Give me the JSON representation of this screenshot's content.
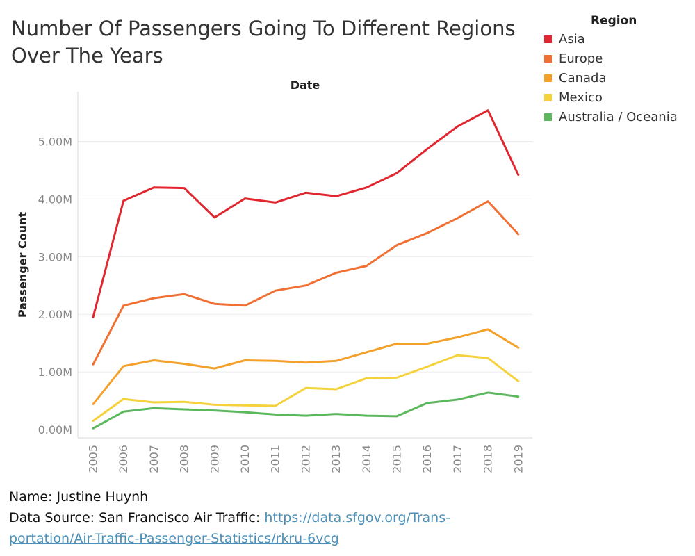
{
  "title": "Number Of Passengers Going To Different Regions Over The Years",
  "chart_data": {
    "type": "line",
    "xlabel": "Date",
    "ylabel": "Passenger Count",
    "x": [
      "2005",
      "2006",
      "2007",
      "2008",
      "2009",
      "2010",
      "2011",
      "2012",
      "2013",
      "2014",
      "2015",
      "2016",
      "2017",
      "2018",
      "2019"
    ],
    "yticks": [
      {
        "value": 0,
        "label": "0.00M"
      },
      {
        "value": 1000000,
        "label": "1.00M"
      },
      {
        "value": 2000000,
        "label": "2.00M"
      },
      {
        "value": 3000000,
        "label": "3.00M"
      },
      {
        "value": 4000000,
        "label": "4.00M"
      },
      {
        "value": 5000000,
        "label": "5.00M"
      }
    ],
    "ylim": [
      0,
      5800000
    ],
    "grid": true,
    "legend_title": "Region",
    "legend_position": "top-right",
    "series": [
      {
        "name": "Asia",
        "color": "#e0262f",
        "values": [
          1950000,
          3970000,
          4200000,
          4190000,
          3680000,
          4010000,
          3940000,
          4110000,
          4050000,
          4200000,
          4450000,
          4870000,
          5260000,
          5540000,
          4420000
        ]
      },
      {
        "name": "Europe",
        "color": "#f07033",
        "values": [
          1130000,
          2150000,
          2280000,
          2350000,
          2180000,
          2150000,
          2410000,
          2500000,
          2720000,
          2840000,
          3200000,
          3410000,
          3670000,
          3960000,
          3390000
        ]
      },
      {
        "name": "Canada",
        "color": "#f4a12b",
        "values": [
          440000,
          1100000,
          1200000,
          1140000,
          1060000,
          1200000,
          1190000,
          1160000,
          1190000,
          1340000,
          1490000,
          1490000,
          1600000,
          1740000,
          1420000
        ]
      },
      {
        "name": "Mexico",
        "color": "#f5d23c",
        "values": [
          150000,
          530000,
          470000,
          480000,
          430000,
          420000,
          410000,
          720000,
          700000,
          890000,
          900000,
          1090000,
          1290000,
          1240000,
          840000
        ]
      },
      {
        "name": "Australia / Oceania",
        "color": "#5cb85c",
        "values": [
          20000,
          310000,
          370000,
          350000,
          330000,
          300000,
          260000,
          240000,
          270000,
          240000,
          230000,
          460000,
          520000,
          640000,
          570000
        ]
      }
    ]
  },
  "footer": {
    "name_line": "Name: Justine Huynh",
    "source_prefix": "Data Source: San Francisco Air Traffic: ",
    "source_link_line1": "https://data.sfgov.org/Trans-",
    "source_link_line2": "portation/Air-Traffic-Passenger-Statistics/rkru-6vcg"
  }
}
